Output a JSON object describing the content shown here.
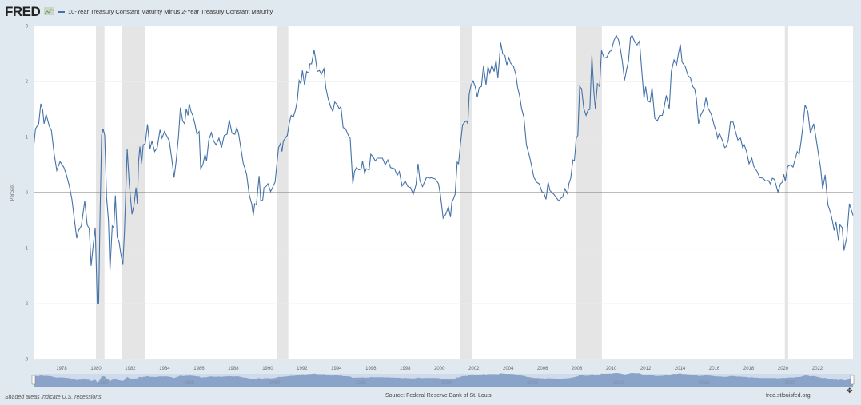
{
  "header": {
    "logo": "FRED",
    "legend_label": "10-Year Treasury Constant Maturity Minus 2-Year Treasury Constant Maturity"
  },
  "footer": {
    "note": "Shaded areas indicate U.S. recessions.",
    "source": "Source: Federal Reserve Bank of St. Louis",
    "site": "fred.stlouisfed.org"
  },
  "colors": {
    "series": "#4572a7",
    "recession": "#e5e5e5",
    "zero_line": "#000000",
    "background": "#e1e9f0"
  },
  "chart_data": {
    "type": "line",
    "title": "10-Year Treasury Constant Maturity Minus 2-Year Treasury Constant Maturity",
    "xlabel": "",
    "ylabel": "Percent",
    "xlim": [
      1976.37,
      2024.07
    ],
    "ylim": [
      -3,
      3
    ],
    "yticks": [
      "-3",
      "-2",
      "-1",
      "0",
      "1",
      "2",
      "3"
    ],
    "xticks": [
      "1978",
      "1980",
      "1982",
      "1984",
      "1986",
      "1988",
      "1990",
      "1992",
      "1994",
      "1996",
      "1998",
      "2000",
      "2002",
      "2004",
      "2006",
      "2008",
      "2010",
      "2012",
      "2014",
      "2016",
      "2018",
      "2020",
      "2022"
    ],
    "navigator_ticks": [
      "1980",
      "1985",
      "1990",
      "1995",
      "2000",
      "2005",
      "2010",
      "2015",
      "2020"
    ],
    "grid": true,
    "legend": "top-left",
    "recessions": [
      [
        1980.0,
        1980.5
      ],
      [
        1981.5,
        1982.88
      ],
      [
        1990.55,
        1991.2
      ],
      [
        2001.2,
        2001.87
      ],
      [
        2007.95,
        2009.45
      ],
      [
        2020.1,
        2020.3
      ]
    ],
    "x": [
      1976.39,
      1976.48,
      1976.67,
      1976.79,
      1976.9,
      1976.98,
      1977.1,
      1977.29,
      1977.41,
      1977.57,
      1977.72,
      1977.91,
      1978.14,
      1978.29,
      1978.45,
      1978.6,
      1978.76,
      1978.88,
      1978.99,
      1979.15,
      1979.35,
      1979.49,
      1979.61,
      1979.72,
      1979.85,
      1979.96,
      1980.08,
      1980.16,
      1980.23,
      1980.33,
      1980.42,
      1980.51,
      1980.62,
      1980.73,
      1980.82,
      1980.95,
      1981.04,
      1981.13,
      1981.24,
      1981.35,
      1981.44,
      1981.57,
      1981.66,
      1981.82,
      1981.94,
      1982.1,
      1982.22,
      1982.33,
      1982.41,
      1982.48,
      1982.56,
      1982.66,
      1982.75,
      1982.87,
      1983.0,
      1983.15,
      1983.26,
      1983.42,
      1983.57,
      1983.73,
      1983.85,
      1983.99,
      1984.11,
      1984.27,
      1984.42,
      1984.55,
      1984.67,
      1984.81,
      1984.92,
      1985.05,
      1985.17,
      1985.26,
      1985.36,
      1985.43,
      1985.54,
      1985.64,
      1985.76,
      1985.88,
      1986.01,
      1986.1,
      1986.22,
      1986.35,
      1986.44,
      1986.57,
      1986.72,
      1986.85,
      1987.0,
      1987.16,
      1987.31,
      1987.47,
      1987.63,
      1987.76,
      1987.92,
      1988.09,
      1988.2,
      1988.3,
      1988.43,
      1988.58,
      1988.66,
      1988.77,
      1988.92,
      1989.08,
      1989.16,
      1989.24,
      1989.34,
      1989.5,
      1989.6,
      1989.71,
      1989.78,
      1989.9,
      1990.01,
      1990.17,
      1990.32,
      1990.43,
      1990.56,
      1990.63,
      1990.74,
      1990.83,
      1990.91,
      1991.02,
      1991.14,
      1991.25,
      1991.36,
      1991.49,
      1991.61,
      1991.72,
      1991.83,
      1991.93,
      1992.02,
      1992.14,
      1992.26,
      1992.39,
      1992.45,
      1992.55,
      1992.7,
      1992.78,
      1992.88,
      1993.01,
      1993.12,
      1993.27,
      1993.38,
      1993.51,
      1993.66,
      1993.79,
      1993.9,
      1994.05,
      1994.16,
      1994.26,
      1994.39,
      1994.53,
      1994.69,
      1994.8,
      1994.95,
      1995.05,
      1995.16,
      1995.31,
      1995.44,
      1995.52,
      1995.64,
      1995.74,
      1995.9,
      1996.0,
      1996.14,
      1996.26,
      1996.37,
      1996.53,
      1996.68,
      1996.84,
      1996.99,
      1997.15,
      1997.38,
      1997.54,
      1997.66,
      1997.82,
      1998.0,
      1998.16,
      1998.31,
      1998.47,
      1998.63,
      1998.75,
      1998.86,
      1999.01,
      1999.25,
      1999.4,
      1999.55,
      1999.78,
      1999.94,
      2000.05,
      2000.21,
      2000.36,
      2000.52,
      2000.64,
      2000.72,
      2000.8,
      2000.91,
      2001.03,
      2001.11,
      2001.22,
      2001.34,
      2001.47,
      2001.57,
      2001.65,
      2001.73,
      2001.84,
      2001.96,
      2002.09,
      2002.2,
      2002.31,
      2002.44,
      2002.56,
      2002.71,
      2002.82,
      2002.93,
      2003.05,
      2003.18,
      2003.29,
      2003.4,
      2003.56,
      2003.68,
      2003.81,
      2003.92,
      2004.03,
      2004.15,
      2004.31,
      2004.44,
      2004.55,
      2004.66,
      2004.78,
      2004.91,
      2005.06,
      2005.25,
      2005.38,
      2005.49,
      2005.65,
      2005.8,
      2005.96,
      2006.07,
      2006.2,
      2006.32,
      2006.43,
      2006.54,
      2006.66,
      2006.82,
      2006.95,
      2007.06,
      2007.17,
      2007.3,
      2007.45,
      2007.53,
      2007.64,
      2007.77,
      2007.85,
      2007.96,
      2008.05,
      2008.16,
      2008.27,
      2008.4,
      2008.53,
      2008.64,
      2008.75,
      2008.87,
      2008.98,
      2009.07,
      2009.19,
      2009.32,
      2009.43,
      2009.59,
      2009.74,
      2009.9,
      2010.01,
      2010.14,
      2010.29,
      2010.42,
      2010.53,
      2010.64,
      2010.77,
      2010.9,
      2011.0,
      2011.12,
      2011.21,
      2011.37,
      2011.5,
      2011.64,
      2011.79,
      2011.9,
      2012.0,
      2012.11,
      2012.26,
      2012.37,
      2012.53,
      2012.68,
      2012.81,
      2012.97,
      2013.06,
      2013.2,
      2013.37,
      2013.49,
      2013.65,
      2013.8,
      2013.91,
      2014.02,
      2014.12,
      2014.3,
      2014.46,
      2014.61,
      2014.74,
      2014.85,
      2014.95,
      2015.08,
      2015.2,
      2015.39,
      2015.51,
      2015.62,
      2015.82,
      2015.98,
      2016.13,
      2016.19,
      2016.29,
      2016.48,
      2016.6,
      2016.7,
      2016.81,
      2016.93,
      2017.09,
      2017.21,
      2017.37,
      2017.52,
      2017.65,
      2017.74,
      2017.87,
      2018.02,
      2018.18,
      2018.3,
      2018.49,
      2018.64,
      2018.83,
      2018.98,
      2019.14,
      2019.26,
      2019.38,
      2019.49,
      2019.57,
      2019.7,
      2019.85,
      2019.96,
      2020.04,
      2020.13,
      2020.27,
      2020.43,
      2020.58,
      2020.69,
      2020.82,
      2020.94,
      2021.05,
      2021.16,
      2021.28,
      2021.44,
      2021.59,
      2021.78,
      2021.91,
      2022.06,
      2022.19,
      2022.3,
      2022.45,
      2022.61,
      2022.76,
      2022.87,
      2022.97,
      2023.08,
      2023.23,
      2023.31,
      2023.44,
      2023.55,
      2023.71,
      2023.86,
      2024.07
    ],
    "y": [
      0.86,
      1.15,
      1.24,
      1.6,
      1.48,
      1.24,
      1.41,
      1.19,
      1.12,
      0.69,
      0.4,
      0.56,
      0.45,
      0.31,
      0.12,
      -0.12,
      -0.53,
      -0.82,
      -0.68,
      -0.6,
      -0.15,
      -0.58,
      -0.65,
      -1.32,
      -0.92,
      -0.63,
      -2.0,
      -1.99,
      -0.6,
      1.03,
      1.15,
      1.03,
      -0.08,
      -0.51,
      -1.4,
      -0.6,
      -0.63,
      -0.05,
      -0.8,
      -0.89,
      -1.08,
      -1.3,
      -0.7,
      0.79,
      0.16,
      -0.39,
      -0.22,
      0.09,
      -0.2,
      0.55,
      0.83,
      0.52,
      0.86,
      0.88,
      1.23,
      0.79,
      0.93,
      0.74,
      0.81,
      1.13,
      0.98,
      1.1,
      1.03,
      0.93,
      0.59,
      0.27,
      0.57,
      1.03,
      1.53,
      1.29,
      1.24,
      1.51,
      1.39,
      1.6,
      1.46,
      1.39,
      1.24,
      1.05,
      1.1,
      0.43,
      0.5,
      0.69,
      0.57,
      0.95,
      1.08,
      0.93,
      0.86,
      0.98,
      0.81,
      1.03,
      1.05,
      1.31,
      1.07,
      1.05,
      1.17,
      1.07,
      0.81,
      0.52,
      0.45,
      0.33,
      -0.03,
      -0.22,
      -0.41,
      -0.2,
      -0.22,
      0.3,
      -0.15,
      -0.13,
      0.09,
      0.11,
      0.16,
      0.02,
      0.12,
      0.19,
      0.59,
      0.81,
      0.88,
      0.74,
      0.93,
      0.98,
      1.03,
      1.24,
      1.39,
      1.36,
      1.48,
      1.65,
      2.02,
      1.96,
      2.2,
      1.94,
      2.18,
      2.15,
      2.32,
      2.32,
      2.57,
      2.42,
      2.18,
      2.2,
      2.13,
      2.23,
      1.89,
      1.7,
      1.55,
      1.46,
      1.63,
      1.58,
      1.51,
      1.55,
      1.17,
      1.15,
      1.03,
      0.98,
      0.16,
      0.38,
      0.45,
      0.41,
      0.43,
      0.57,
      0.35,
      0.43,
      0.41,
      0.69,
      0.64,
      0.57,
      0.62,
      0.62,
      0.62,
      0.5,
      0.59,
      0.45,
      0.43,
      0.31,
      0.38,
      0.12,
      0.21,
      0.11,
      0.09,
      -0.03,
      0.14,
      0.52,
      0.21,
      0.11,
      0.28,
      0.26,
      0.27,
      0.24,
      0.16,
      -0.03,
      -0.46,
      -0.39,
      -0.26,
      -0.44,
      -0.17,
      -0.12,
      -0.03,
      0.55,
      0.52,
      0.88,
      1.22,
      1.27,
      1.29,
      1.24,
      1.77,
      1.94,
      2.01,
      1.89,
      1.72,
      1.89,
      1.91,
      2.28,
      1.94,
      2.27,
      2.15,
      2.3,
      2.18,
      2.39,
      2.06,
      2.7,
      2.5,
      2.47,
      2.3,
      2.43,
      2.33,
      2.27,
      2.13,
      1.89,
      1.75,
      1.51,
      1.36,
      0.86,
      0.64,
      0.45,
      0.28,
      0.19,
      0.16,
      0.02,
      0.0,
      -0.12,
      0.19,
      0.04,
      0.0,
      -0.03,
      -0.1,
      -0.15,
      -0.1,
      -0.08,
      0.07,
      -0.02,
      0.16,
      0.26,
      0.59,
      0.57,
      0.98,
      1.03,
      1.91,
      1.87,
      1.51,
      1.39,
      1.48,
      1.5,
      2.47,
      1.84,
      1.51,
      1.96,
      1.91,
      2.56,
      2.42,
      2.44,
      2.54,
      2.56,
      2.73,
      2.83,
      2.75,
      2.59,
      2.37,
      2.02,
      2.23,
      2.37,
      2.8,
      2.83,
      2.71,
      2.66,
      2.73,
      2.13,
      1.7,
      1.91,
      1.65,
      1.63,
      1.89,
      1.34,
      1.29,
      1.39,
      1.39,
      1.51,
      1.75,
      1.51,
      2.18,
      2.39,
      2.3,
      2.51,
      2.67,
      2.35,
      2.27,
      2.11,
      2.06,
      1.91,
      1.87,
      1.7,
      1.24,
      1.39,
      1.51,
      1.71,
      1.53,
      1.41,
      1.22,
      1.07,
      0.98,
      1.07,
      0.93,
      0.81,
      0.83,
      0.95,
      1.27,
      1.27,
      1.12,
      0.95,
      0.98,
      0.81,
      0.86,
      0.74,
      0.52,
      0.62,
      0.47,
      0.38,
      0.27,
      0.26,
      0.21,
      0.22,
      0.16,
      0.26,
      0.24,
      0.16,
      0.01,
      0.16,
      0.19,
      0.33,
      0.21,
      0.47,
      0.5,
      0.46,
      0.59,
      0.74,
      0.69,
      0.93,
      1.22,
      1.58,
      1.46,
      1.07,
      1.24,
      1.0,
      0.69,
      0.43,
      0.07,
      0.32,
      -0.22,
      -0.36,
      -0.51,
      -0.68,
      -0.53,
      -0.87,
      -0.58,
      -0.63,
      -1.04,
      -0.8,
      -0.2,
      -0.41
    ]
  }
}
